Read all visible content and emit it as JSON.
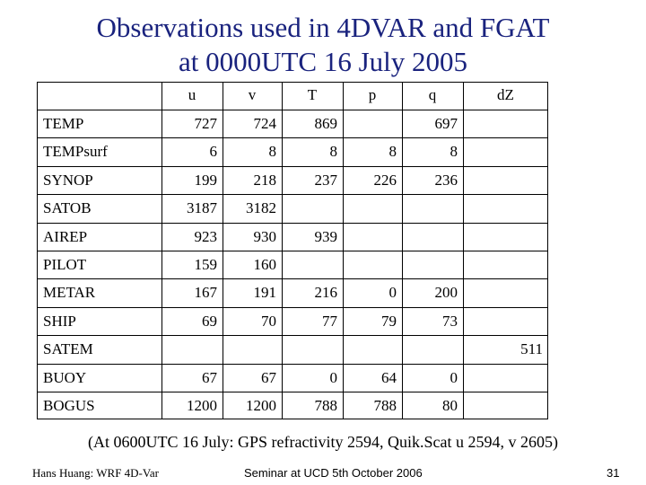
{
  "title": {
    "line1": "Observations used in 4DVAR and FGAT",
    "line2": "at 0000UTC 16 July 2005"
  },
  "table": {
    "columns": [
      "u",
      "v",
      "T",
      "p",
      "q",
      "dZ"
    ],
    "rows": [
      {
        "label": "TEMP",
        "values": [
          "727",
          "724",
          "869",
          "",
          "697",
          ""
        ]
      },
      {
        "label": "TEMPsurf",
        "values": [
          "6",
          "8",
          "8",
          "8",
          "8",
          ""
        ]
      },
      {
        "label": "SYNOP",
        "values": [
          "199",
          "218",
          "237",
          "226",
          "236",
          ""
        ]
      },
      {
        "label": "SATOB",
        "values": [
          "3187",
          "3182",
          "",
          "",
          "",
          ""
        ]
      },
      {
        "label": "AIREP",
        "values": [
          "923",
          "930",
          "939",
          "",
          "",
          ""
        ]
      },
      {
        "label": "PILOT",
        "values": [
          "159",
          "160",
          "",
          "",
          "",
          ""
        ]
      },
      {
        "label": "METAR",
        "values": [
          "167",
          "191",
          "216",
          "0",
          "200",
          ""
        ]
      },
      {
        "label": "SHIP",
        "values": [
          "69",
          "70",
          "77",
          "79",
          "73",
          ""
        ]
      },
      {
        "label": "SATEM",
        "values": [
          "",
          "",
          "",
          "",
          "",
          "511"
        ]
      },
      {
        "label": "BUOY",
        "values": [
          "67",
          "67",
          "0",
          "64",
          "0",
          ""
        ]
      },
      {
        "label": "BOGUS",
        "values": [
          "1200",
          "1200",
          "788",
          "788",
          "80",
          ""
        ]
      }
    ]
  },
  "footnote": "(At 0600UTC 16 July: GPS refractivity 2594, Quik.Scat u 2594, v 2605)",
  "footer": {
    "author": "Hans Huang: WRF 4D-Var",
    "event": "Seminar at UCD 5th October 2006",
    "page_number": "31"
  }
}
